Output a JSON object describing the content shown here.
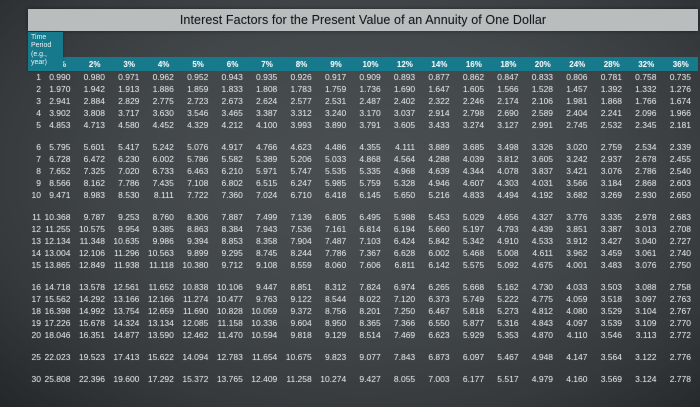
{
  "title": "Interest Factors for the Present Value of an Annuity of One Dollar",
  "colors": {
    "page_background": "#42474a",
    "title_bar_background": "#b9bdbe",
    "title_text": "#15181a",
    "header_teal": "#17798c",
    "header_text": "#eef4f6",
    "body_text": "#d9dcdd"
  },
  "chart_data": {
    "type": "table",
    "title": "Interest Factors for the Present Value of an Annuity of One Dollar",
    "period_header_lines": [
      "Time",
      "Period",
      "(e.g.,",
      "year)"
    ],
    "rate_headers": [
      "1%",
      "2%",
      "3%",
      "4%",
      "5%",
      "6%",
      "7%",
      "8%",
      "9%",
      "10%",
      "12%",
      "14%",
      "16%",
      "18%",
      "20%",
      "24%",
      "28%",
      "32%",
      "36%"
    ],
    "row_groups": [
      {
        "rows": [
          {
            "period": "1",
            "values": [
              "0.990",
              "0.980",
              "0.971",
              "0.962",
              "0.952",
              "0.943",
              "0.935",
              "0.926",
              "0.917",
              "0.909",
              "0.893",
              "0.877",
              "0.862",
              "0.847",
              "0.833",
              "0.806",
              "0.781",
              "0.758",
              "0.735"
            ]
          },
          {
            "period": "2",
            "values": [
              "1.970",
              "1.942",
              "1.913",
              "1.886",
              "1.859",
              "1.833",
              "1.808",
              "1.783",
              "1.759",
              "1.736",
              "1.690",
              "1.647",
              "1.605",
              "1.566",
              "1.528",
              "1.457",
              "1.392",
              "1.332",
              "1.276"
            ]
          },
          {
            "period": "3",
            "values": [
              "2.941",
              "2.884",
              "2.829",
              "2.775",
              "2.723",
              "2.673",
              "2.624",
              "2.577",
              "2.531",
              "2.487",
              "2.402",
              "2.322",
              "2.246",
              "2.174",
              "2.106",
              "1.981",
              "1.868",
              "1.766",
              "1.674"
            ]
          },
          {
            "period": "4",
            "values": [
              "3.902",
              "3.808",
              "3.717",
              "3.630",
              "3.546",
              "3.465",
              "3.387",
              "3.312",
              "3.240",
              "3.170",
              "3.037",
              "2.914",
              "2.798",
              "2.690",
              "2.589",
              "2.404",
              "2.241",
              "2.096",
              "1.966"
            ]
          },
          {
            "period": "5",
            "values": [
              "4.853",
              "4.713",
              "4.580",
              "4.452",
              "4.329",
              "4.212",
              "4.100",
              "3.993",
              "3.890",
              "3.791",
              "3.605",
              "3.433",
              "3.274",
              "3.127",
              "2.991",
              "2.745",
              "2.532",
              "2.345",
              "2.181"
            ]
          }
        ]
      },
      {
        "rows": [
          {
            "period": "6",
            "values": [
              "5.795",
              "5.601",
              "5.417",
              "5.242",
              "5.076",
              "4.917",
              "4.766",
              "4.623",
              "4.486",
              "4.355",
              "4.111",
              "3.889",
              "3.685",
              "3.498",
              "3.326",
              "3.020",
              "2.759",
              "2.534",
              "2.339"
            ]
          },
          {
            "period": "7",
            "values": [
              "6.728",
              "6.472",
              "6.230",
              "6.002",
              "5.786",
              "5.582",
              "5.389",
              "5.206",
              "5.033",
              "4.868",
              "4.564",
              "4.288",
              "4.039",
              "3.812",
              "3.605",
              "3.242",
              "2.937",
              "2.678",
              "2.455"
            ]
          },
          {
            "period": "8",
            "values": [
              "7.652",
              "7.325",
              "7.020",
              "6.733",
              "6.463",
              "6.210",
              "5.971",
              "5.747",
              "5.535",
              "5.335",
              "4.968",
              "4.639",
              "4.344",
              "4.078",
              "3.837",
              "3.421",
              "3.076",
              "2.786",
              "2.540"
            ]
          },
          {
            "period": "9",
            "values": [
              "8.566",
              "8.162",
              "7.786",
              "7.435",
              "7.108",
              "6.802",
              "6.515",
              "6.247",
              "5.985",
              "5.759",
              "5.328",
              "4.946",
              "4.607",
              "4.303",
              "4.031",
              "3.566",
              "3.184",
              "2.868",
              "2.603"
            ]
          },
          {
            "period": "10",
            "values": [
              "9.471",
              "8.983",
              "8.530",
              "8.111",
              "7.722",
              "7.360",
              "7.024",
              "6.710",
              "6.418",
              "6.145",
              "5.650",
              "5.216",
              "4.833",
              "4.494",
              "4.192",
              "3.682",
              "3.269",
              "2.930",
              "2.650"
            ]
          }
        ]
      },
      {
        "rows": [
          {
            "period": "11",
            "values": [
              "10.368",
              "9.787",
              "9.253",
              "8.760",
              "8.306",
              "7.887",
              "7.499",
              "7.139",
              "6.805",
              "6.495",
              "5.988",
              "5.453",
              "5.029",
              "4.656",
              "4.327",
              "3.776",
              "3.335",
              "2.978",
              "2.683"
            ]
          },
          {
            "period": "12",
            "values": [
              "11.255",
              "10.575",
              "9.954",
              "9.385",
              "8.863",
              "8.384",
              "7.943",
              "7.536",
              "7.161",
              "6.814",
              "6.194",
              "5.660",
              "5.197",
              "4.793",
              "4.439",
              "3.851",
              "3.387",
              "3.013",
              "2.708"
            ]
          },
          {
            "period": "13",
            "values": [
              "12.134",
              "11.348",
              "10.635",
              "9.986",
              "9.394",
              "8.853",
              "8.358",
              "7.904",
              "7.487",
              "7.103",
              "6.424",
              "5.842",
              "5.342",
              "4.910",
              "4.533",
              "3.912",
              "3.427",
              "3.040",
              "2.727"
            ]
          },
          {
            "period": "14",
            "values": [
              "13.004",
              "12.106",
              "11.296",
              "10.563",
              "9.899",
              "9.295",
              "8.745",
              "8.244",
              "7.786",
              "7.367",
              "6.628",
              "6.002",
              "5.468",
              "5.008",
              "4.611",
              "3.962",
              "3.459",
              "3.061",
              "2.740"
            ]
          },
          {
            "period": "15",
            "values": [
              "13.865",
              "12.849",
              "11.938",
              "11.118",
              "10.380",
              "9.712",
              "9.108",
              "8.559",
              "8.060",
              "7.606",
              "6.811",
              "6.142",
              "5.575",
              "5.092",
              "4.675",
              "4.001",
              "3.483",
              "3.076",
              "2.750"
            ]
          }
        ]
      },
      {
        "rows": [
          {
            "period": "16",
            "values": [
              "14.718",
              "13.578",
              "12.561",
              "11.652",
              "10.838",
              "10.106",
              "9.447",
              "8.851",
              "8.312",
              "7.824",
              "6.974",
              "6.265",
              "5.668",
              "5.162",
              "4.730",
              "4.033",
              "3.503",
              "3.088",
              "2.758"
            ]
          },
          {
            "period": "17",
            "values": [
              "15.562",
              "14.292",
              "13.166",
              "12.166",
              "11.274",
              "10.477",
              "9.763",
              "9.122",
              "8.544",
              "8.022",
              "7.120",
              "6.373",
              "5.749",
              "5.222",
              "4.775",
              "4.059",
              "3.518",
              "3.097",
              "2.763"
            ]
          },
          {
            "period": "18",
            "values": [
              "16.398",
              "14.992",
              "13.754",
              "12.659",
              "11.690",
              "10.828",
              "10.059",
              "9.372",
              "8.756",
              "8.201",
              "7.250",
              "6.467",
              "5.818",
              "5.273",
              "4.812",
              "4.080",
              "3.529",
              "3.104",
              "2.767"
            ]
          },
          {
            "period": "19",
            "values": [
              "17.226",
              "15.678",
              "14.324",
              "13.134",
              "12.085",
              "11.158",
              "10.336",
              "9.604",
              "8.950",
              "8.365",
              "7.366",
              "6.550",
              "5.877",
              "5.316",
              "4.843",
              "4.097",
              "3.539",
              "3.109",
              "2.770"
            ]
          },
          {
            "period": "20",
            "values": [
              "18.046",
              "16.351",
              "14.877",
              "13.590",
              "12.462",
              "11.470",
              "10.594",
              "9.818",
              "9.129",
              "8.514",
              "7.469",
              "6.623",
              "5.929",
              "5.353",
              "4.870",
              "4.110",
              "3.546",
              "3.113",
              "2.772"
            ]
          }
        ]
      },
      {
        "rows": [
          {
            "period": "25",
            "values": [
              "22.023",
              "19.523",
              "17.413",
              "15.622",
              "14.094",
              "12.783",
              "11.654",
              "10.675",
              "9.823",
              "9.077",
              "7.843",
              "6.873",
              "6.097",
              "5.467",
              "4.948",
              "4.147",
              "3.564",
              "3.122",
              "2.776"
            ]
          }
        ]
      },
      {
        "rows": [
          {
            "period": "30",
            "values": [
              "25.808",
              "22.396",
              "19.600",
              "17.292",
              "15.372",
              "13.765",
              "12.409",
              "11.258",
              "10.274",
              "9.427",
              "8.055",
              "7.003",
              "6.177",
              "5.517",
              "4.979",
              "4.160",
              "3.569",
              "3.124",
              "2.778"
            ]
          }
        ]
      }
    ]
  }
}
